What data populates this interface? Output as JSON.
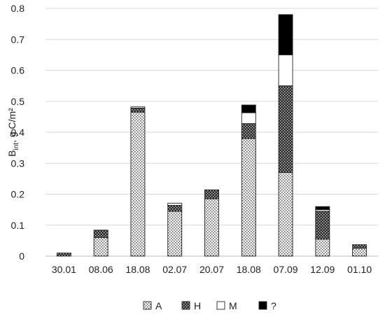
{
  "chart_data": {
    "type": "bar",
    "stacked": true,
    "title": "",
    "xlabel": "",
    "ylabel": {
      "main": "B",
      "sub": "int",
      "rest": ", g C/m²"
    },
    "ylim": [
      0,
      0.8
    ],
    "yticks": [
      "0",
      "0.1",
      "0.2",
      "0.3",
      "0.4",
      "0.5",
      "0.6",
      "0.7",
      "0.8"
    ],
    "grid": true,
    "legend_position": "bottom",
    "categories": [
      "30.01",
      "08.06",
      "18.08",
      "02.07",
      "20.07",
      "18.08",
      "07.09",
      "12.09",
      "01.10"
    ],
    "series": [
      {
        "name": "A",
        "pattern": "dotted",
        "values": [
          0.0,
          0.06,
          0.465,
          0.145,
          0.185,
          0.38,
          0.27,
          0.055,
          0.025
        ]
      },
      {
        "name": "H",
        "pattern": "dense-dots",
        "values": [
          0.01,
          0.024,
          0.013,
          0.019,
          0.029,
          0.048,
          0.28,
          0.09,
          0.012
        ]
      },
      {
        "name": "M",
        "pattern": "white",
        "values": [
          0.0,
          0.0,
          0.004,
          0.007,
          0.0,
          0.035,
          0.1,
          0.005,
          0.0
        ]
      },
      {
        "name": "?",
        "pattern": "black",
        "values": [
          0.0,
          0.0,
          0.0,
          0.0,
          0.0,
          0.025,
          0.13,
          0.01,
          0.0
        ]
      }
    ]
  }
}
